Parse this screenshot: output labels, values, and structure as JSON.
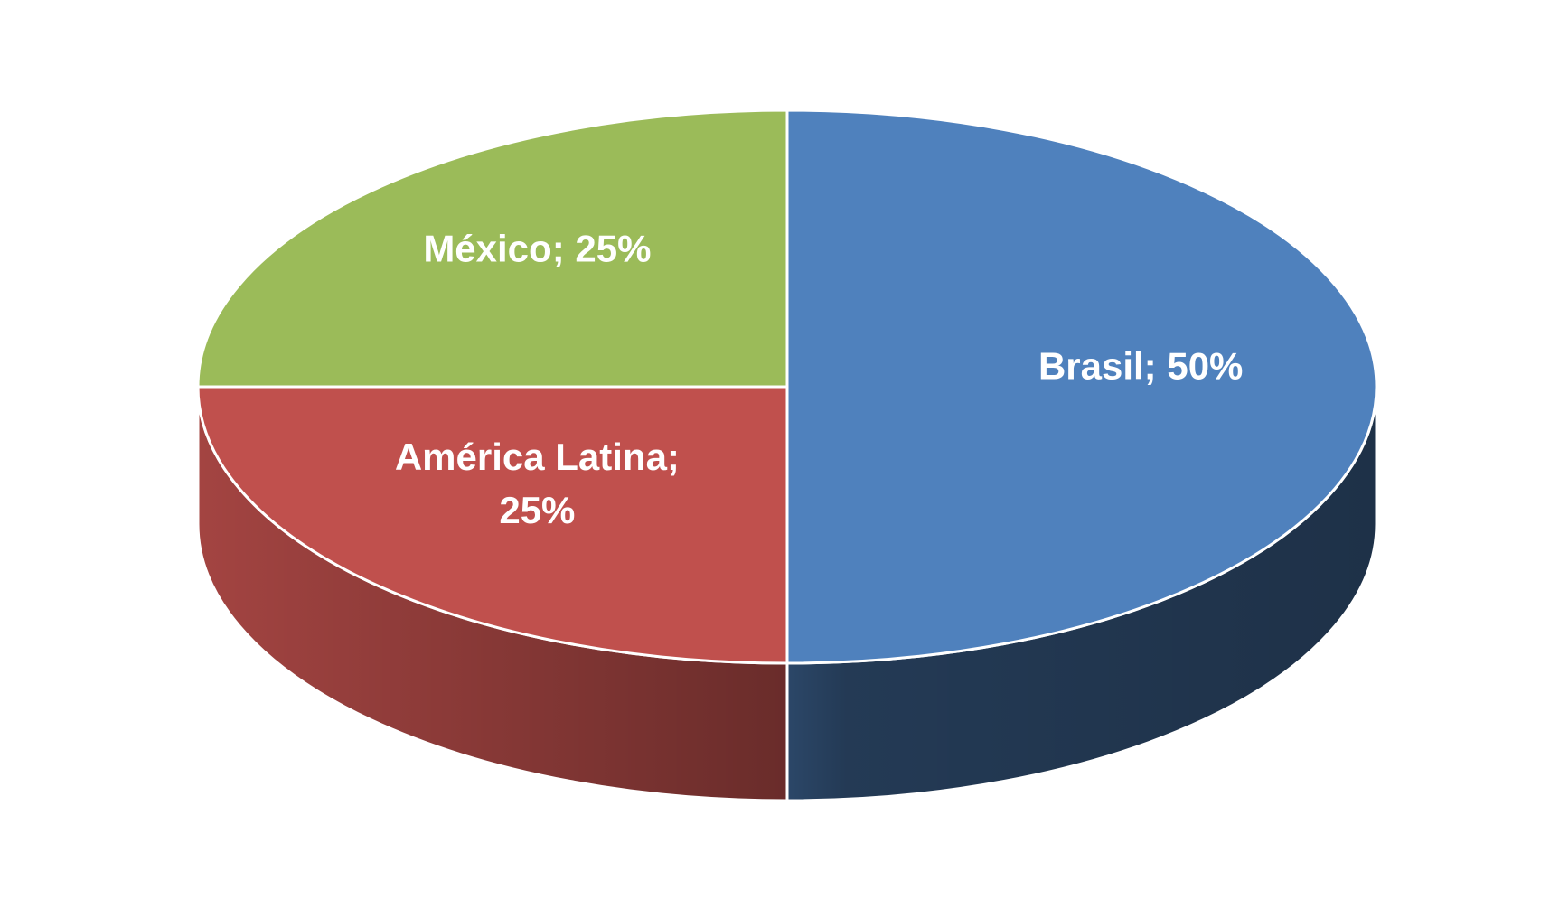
{
  "chart_data": {
    "type": "pie3d",
    "values": [
      50,
      25,
      25
    ],
    "value_labels": [
      "Brasil; 50%",
      "América Latina; 25%",
      "México; 25%"
    ],
    "colors": [
      "#4f81bd",
      "#c0504d",
      "#9bbb59"
    ]
  }
}
